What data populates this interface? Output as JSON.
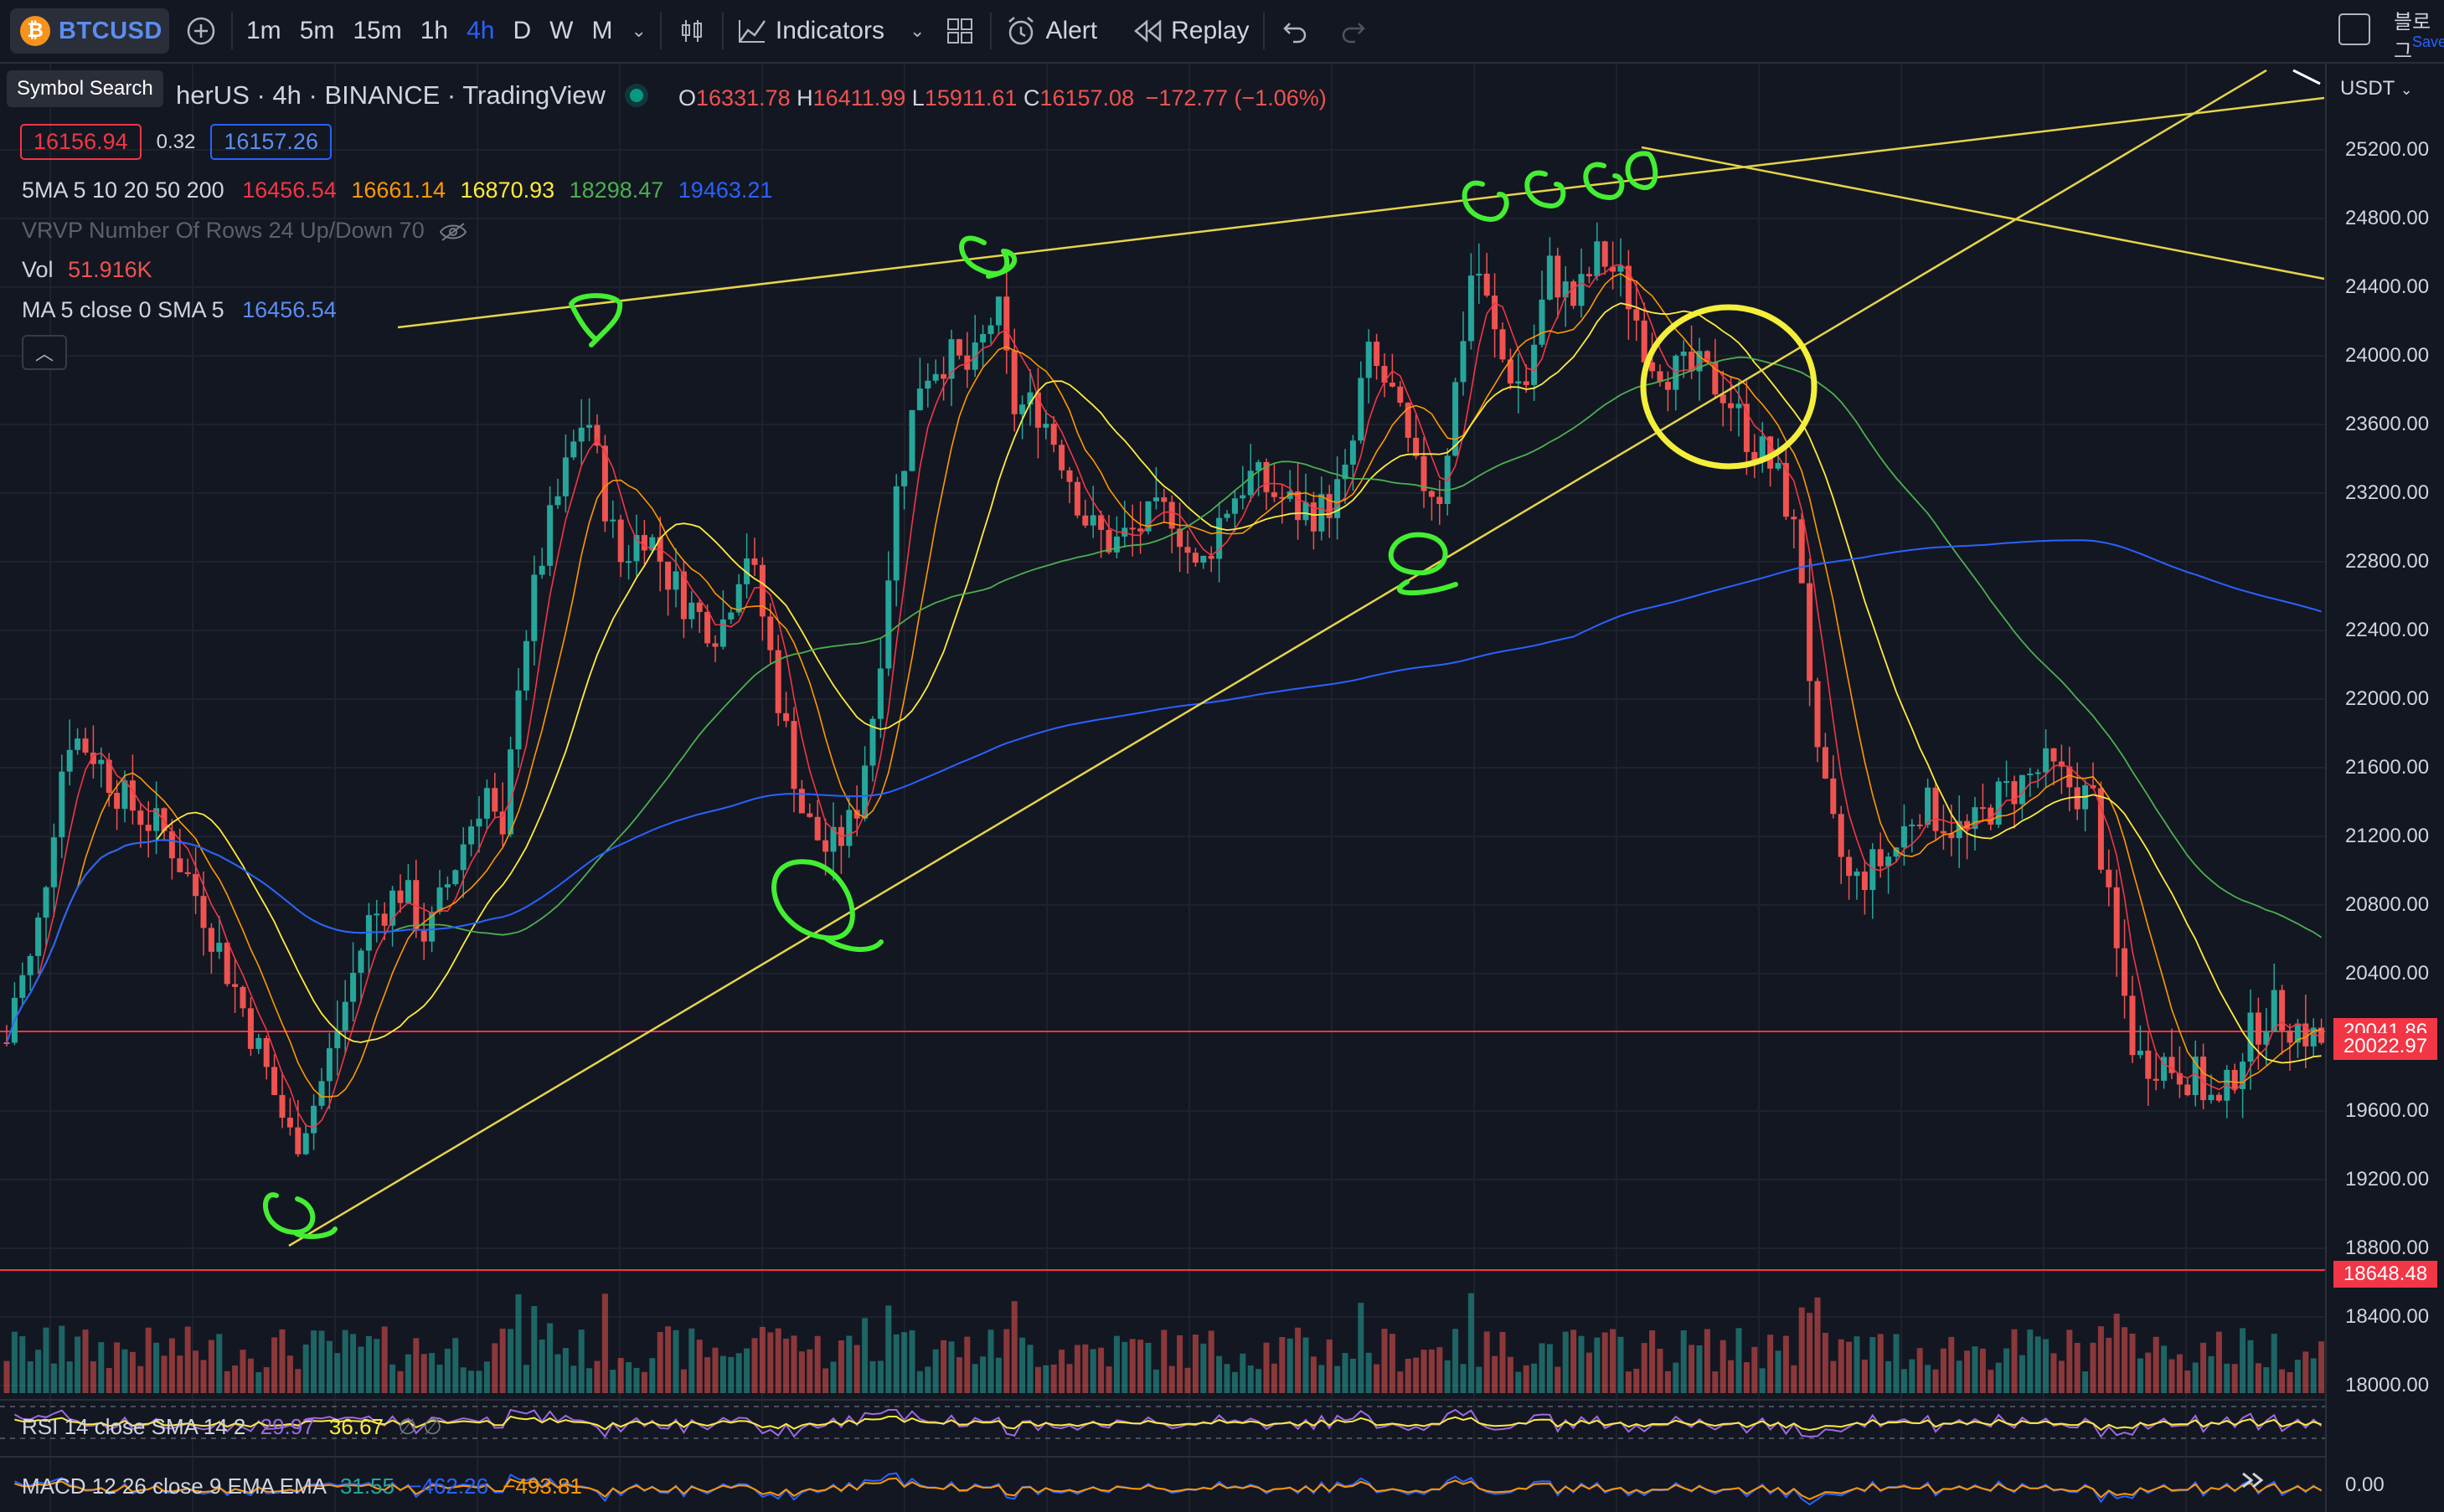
{
  "toolbar": {
    "symbol": "BTCUSD",
    "coin_glyph": "₿",
    "intervals": [
      "1m",
      "5m",
      "15m",
      "1h",
      "4h",
      "D",
      "W",
      "M"
    ],
    "active_interval": "4h",
    "indicators_label": "Indicators",
    "alert_label": "Alert",
    "replay_label": "Replay",
    "right_text": "블로그",
    "right_subtext": "Save"
  },
  "tooltip": {
    "text": "Symbol Search"
  },
  "legend": {
    "title": "herUS · 4h · BINANCE · TradingView",
    "ohlc": {
      "o_label": "O",
      "o": "16331.78",
      "h_label": "H",
      "h": "16411.99",
      "l_label": "L",
      "l": "15911.61",
      "c_label": "C",
      "c": "16157.08",
      "change": "−172.77 (−1.06%)"
    },
    "bid": "16156.94",
    "spread": "0.32",
    "ask": "16157.26",
    "sma": {
      "label": "5MA 5 10 20 50 200",
      "v5": "16456.54",
      "v10": "16661.14",
      "v20": "16870.93",
      "v50": "18298.47",
      "v200": "19463.21"
    },
    "vrvp": "VRVP Number Of Rows 24 Up/Down 70",
    "vol_label": "Vol",
    "vol_value": "51.916K",
    "ma_label": "MA 5 close 0 SMA 5",
    "ma_value": "16456.54"
  },
  "price_axis": {
    "currency": "USDT",
    "labels": [
      "25200.00",
      "24800.00",
      "24400.00",
      "24000.00",
      "23600.00",
      "23200.00",
      "22800.00",
      "22400.00",
      "22000.00",
      "21600.00",
      "21200.00",
      "20800.00",
      "20400.00",
      "19600.00",
      "19200.00",
      "18800.00",
      "18400.00",
      "18000.00"
    ],
    "tags": [
      {
        "text": "20041.86",
        "color": "#f23645"
      },
      {
        "text": "20022.97",
        "color": "#f23645"
      },
      {
        "text": "18648.48",
        "color": "#f23645"
      }
    ]
  },
  "rsi": {
    "label": "RSI 14 close SMA 14 2",
    "v1": "29.97",
    "v2": "36.67",
    "sym": "∅  ∅"
  },
  "macd": {
    "label": "MACD 12 26 close 9 EMA EMA",
    "v1": "31.55",
    "v2": "−462.26",
    "v3": "−493.81",
    "axis": "0.00"
  },
  "colors": {
    "bull": "#26a69a",
    "bear": "#ef5350",
    "sma5": "#f23645",
    "sma10": "#ff9800",
    "sma20": "#ffeb3b",
    "sma50": "#4caf50",
    "sma200": "#2962ff",
    "annotation_green": "#44ee33",
    "annotation_yellow": "#ffee55"
  }
}
